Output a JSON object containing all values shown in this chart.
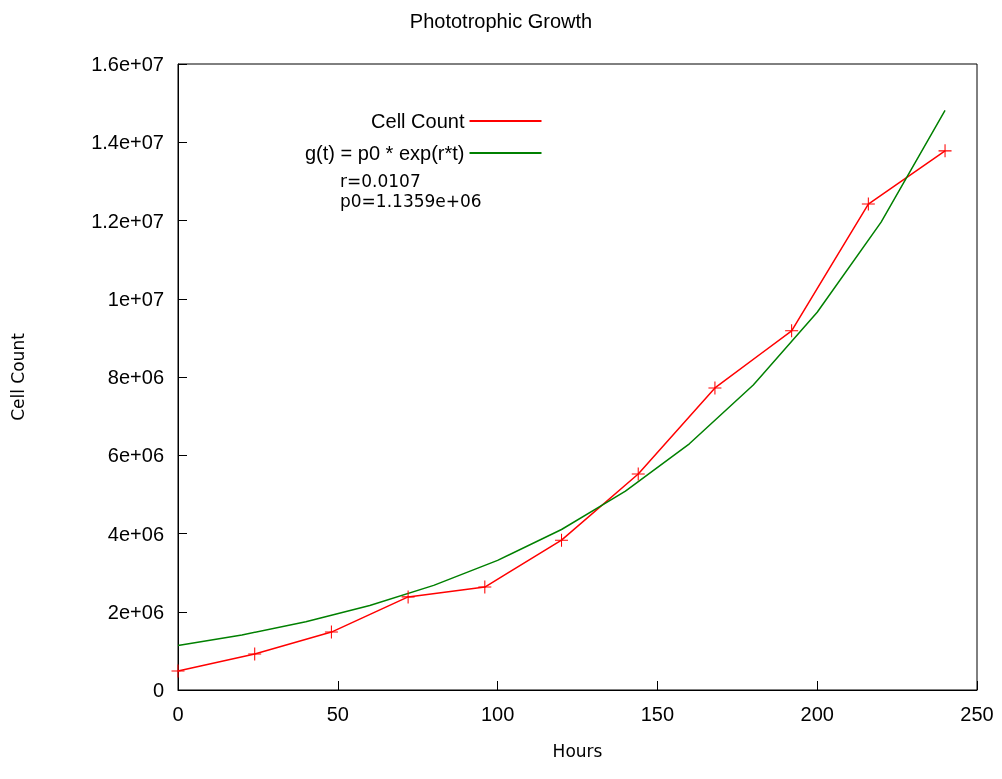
{
  "chart_data": {
    "type": "line",
    "title": "Phototrophic Growth",
    "xlabel": "Hours",
    "ylabel": "Cell Count",
    "xlim": [
      0,
      250
    ],
    "xticks": [
      0,
      50,
      100,
      150,
      200,
      250
    ],
    "ylim": [
      0,
      16000000
    ],
    "yticks": [
      0,
      {
        "value": 2000000,
        "label": "2e+06"
      },
      {
        "value": 4000000,
        "label": "4e+06"
      },
      {
        "value": 6000000,
        "label": "6e+06"
      },
      {
        "value": 8000000,
        "label": "8e+06"
      },
      {
        "value": 10000000,
        "label": "1e+07"
      },
      {
        "value": 12000000,
        "label": "1.2e+07"
      },
      {
        "value": 14000000,
        "label": "1.4e+07"
      },
      {
        "value": 16000000,
        "label": "1.6e+07"
      }
    ],
    "grid": false,
    "legend": "top",
    "annotations": [
      "r=0.0107",
      "p0=1.1359e+06"
    ],
    "series": [
      {
        "name": "Cell Count",
        "color": "#ff0000",
        "marker": "cross",
        "x": [
          0,
          24,
          48,
          72,
          96,
          120,
          144,
          168,
          192,
          216,
          240
        ],
        "values": [
          486000,
          920000,
          1480000,
          2380000,
          2630000,
          3830000,
          5520000,
          7720000,
          9180000,
          12420000,
          13780000
        ]
      },
      {
        "name": "g(t) = p0 * exp(r*t)",
        "color": "#008000",
        "marker": "none",
        "x": [
          0,
          20,
          40,
          60,
          80,
          100,
          120,
          140,
          160,
          180,
          200,
          220,
          240
        ],
        "values": [
          1136000,
          1407000,
          1743000,
          2159000,
          2674000,
          3312000,
          4102000,
          5081000,
          6293000,
          7795000,
          9654000,
          11958000,
          14812000
        ]
      }
    ]
  }
}
